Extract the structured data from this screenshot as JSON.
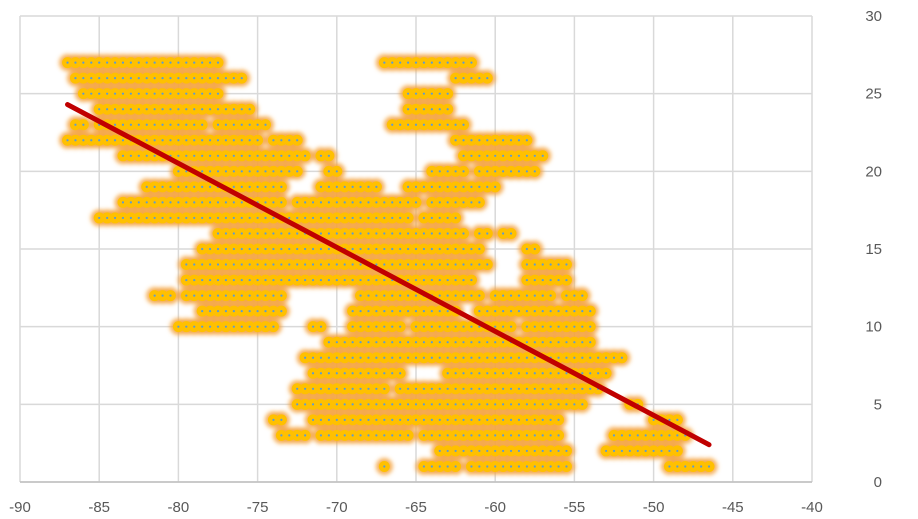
{
  "chart_data": {
    "type": "scatter",
    "title": "",
    "xlabel": "",
    "ylabel": "",
    "xlim": [
      -90,
      -40
    ],
    "ylim": [
      0,
      30
    ],
    "x_ticks": [
      -90,
      -85,
      -80,
      -75,
      -70,
      -65,
      -60,
      -55,
      -50,
      -45,
      -40
    ],
    "y_ticks": [
      0,
      5,
      10,
      15,
      20,
      25,
      30
    ],
    "x_tick_labels": [
      "-90",
      "-85",
      "-80",
      "-75",
      "-70",
      "-65",
      "-60",
      "-55",
      "-50",
      "-45",
      "-40"
    ],
    "y_tick_labels": [
      "0",
      "5",
      "10",
      "15",
      "20",
      "25",
      "30"
    ],
    "y_axis_side": "right",
    "grid": true,
    "legend": "none",
    "marker_color": "#FFC000",
    "marker_glow_color": "#F4A340",
    "marker_center_color": "#5B9BD5",
    "x_step": 0.5,
    "series": [
      {
        "points_by_row": [
          {
            "y": 27,
            "x_ranges": [
              [
                -87,
                -83.5
              ],
              [
                -83,
                -77.5
              ],
              [
                -67,
                -65
              ],
              [
                -64.5,
                -61.5
              ]
            ]
          },
          {
            "y": 26,
            "x_ranges": [
              [
                -86.5,
                -84.5
              ],
              [
                -84,
                -77.5
              ],
              [
                -77,
                -76
              ],
              [
                -62.5,
                -60.5
              ]
            ]
          },
          {
            "y": 25,
            "x_ranges": [
              [
                -86,
                -85.5
              ],
              [
                -85,
                -77.5
              ],
              [
                -65.5,
                -63
              ]
            ]
          },
          {
            "y": 24,
            "x_ranges": [
              [
                -85,
                -80
              ],
              [
                -79.5,
                -78
              ],
              [
                -77.5,
                -75.5
              ],
              [
                -65.5,
                -63
              ]
            ]
          },
          {
            "y": 23,
            "x_ranges": [
              [
                -86.5,
                -86
              ],
              [
                -85,
                -78.5
              ],
              [
                -77.5,
                -74.5
              ],
              [
                -66.5,
                -62
              ]
            ]
          },
          {
            "y": 22,
            "x_ranges": [
              [
                -87,
                -85.5
              ],
              [
                -85,
                -81
              ],
              [
                -80.5,
                -76.5
              ],
              [
                -76,
                -75
              ],
              [
                -74,
                -72.5
              ],
              [
                -62.5,
                -58
              ]
            ]
          },
          {
            "y": 21,
            "x_ranges": [
              [
                -83.5,
                -81.5
              ],
              [
                -81,
                -79
              ],
              [
                -78.5,
                -76
              ],
              [
                -75.5,
                -72
              ],
              [
                -71,
                -70.5
              ],
              [
                -62,
                -60
              ],
              [
                -59.5,
                -57
              ]
            ]
          },
          {
            "y": 20,
            "x_ranges": [
              [
                -80,
                -74
              ],
              [
                -73.5,
                -72.5
              ],
              [
                -70.5,
                -70
              ],
              [
                -64,
                -62
              ],
              [
                -61,
                -60
              ],
              [
                -59.5,
                -57.5
              ]
            ]
          },
          {
            "y": 19,
            "x_ranges": [
              [
                -82,
                -81
              ],
              [
                -80.5,
                -73.5
              ],
              [
                -71,
                -67.5
              ],
              [
                -65.5,
                -60
              ]
            ]
          },
          {
            "y": 18,
            "x_ranges": [
              [
                -83.5,
                -80
              ],
              [
                -79.5,
                -75.5
              ],
              [
                -75,
                -73.5
              ],
              [
                -72.5,
                -70.5
              ],
              [
                -70,
                -65
              ],
              [
                -64,
                -61
              ]
            ]
          },
          {
            "y": 17,
            "x_ranges": [
              [
                -85,
                -84
              ],
              [
                -83.5,
                -78
              ],
              [
                -77.5,
                -74
              ],
              [
                -73.5,
                -68.5
              ],
              [
                -68,
                -65.5
              ],
              [
                -64.5,
                -62.5
              ]
            ]
          },
          {
            "y": 16,
            "x_ranges": [
              [
                -77.5,
                -74
              ],
              [
                -73.5,
                -70
              ],
              [
                -69.5,
                -67.5
              ],
              [
                -67,
                -62
              ],
              [
                -61,
                -60.5
              ],
              [
                -59.5,
                -59
              ]
            ]
          },
          {
            "y": 15,
            "x_ranges": [
              [
                -78.5,
                -77.5
              ],
              [
                -77,
                -74
              ],
              [
                -73.5,
                -67
              ],
              [
                -66.5,
                -64
              ],
              [
                -63.5,
                -61
              ],
              [
                -58,
                -57.5
              ]
            ]
          },
          {
            "y": 14,
            "x_ranges": [
              [
                -79.5,
                -78
              ],
              [
                -77.5,
                -72
              ],
              [
                -71.5,
                -68
              ],
              [
                -67.5,
                -63.5
              ],
              [
                -63,
                -60.5
              ],
              [
                -58,
                -55.5
              ]
            ]
          },
          {
            "y": 13,
            "x_ranges": [
              [
                -79.5,
                -75.5
              ],
              [
                -75,
                -70.5
              ],
              [
                -70,
                -69
              ],
              [
                -68.5,
                -65
              ],
              [
                -64.5,
                -61.5
              ],
              [
                -58,
                -55.5
              ]
            ]
          },
          {
            "y": 12,
            "x_ranges": [
              [
                -81.5,
                -80.5
              ],
              [
                -79.5,
                -78
              ],
              [
                -77.5,
                -76.5
              ],
              [
                -76,
                -73.5
              ],
              [
                -68.5,
                -65
              ],
              [
                -64.5,
                -61
              ],
              [
                -60,
                -57.5
              ],
              [
                -57,
                -56.5
              ],
              [
                -55.5,
                -54.5
              ]
            ]
          },
          {
            "y": 11,
            "x_ranges": [
              [
                -78.5,
                -75
              ],
              [
                -74.5,
                -73.5
              ],
              [
                -69,
                -66
              ],
              [
                -65.5,
                -62.5
              ],
              [
                -61,
                -56
              ],
              [
                -55.5,
                -54
              ]
            ]
          },
          {
            "y": 10,
            "x_ranges": [
              [
                -80,
                -79.5
              ],
              [
                -79,
                -77
              ],
              [
                -76.5,
                -75.5
              ],
              [
                -75,
                -74
              ],
              [
                -71.5,
                -71
              ],
              [
                -69,
                -66
              ],
              [
                -65,
                -59
              ],
              [
                -58,
                -54
              ]
            ]
          },
          {
            "y": 9,
            "x_ranges": [
              [
                -70.5,
                -67.5
              ],
              [
                -67,
                -62
              ],
              [
                -61.5,
                -57
              ],
              [
                -56.5,
                -54
              ]
            ]
          },
          {
            "y": 8,
            "x_ranges": [
              [
                -72,
                -69
              ],
              [
                -68.5,
                -64
              ],
              [
                -63.5,
                -58
              ],
              [
                -57.5,
                -55
              ],
              [
                -54.5,
                -52
              ]
            ]
          },
          {
            "y": 7,
            "x_ranges": [
              [
                -71.5,
                -69
              ],
              [
                -68.5,
                -66
              ],
              [
                -63,
                -58.5
              ],
              [
                -58,
                -54
              ],
              [
                -53.5,
                -53
              ]
            ]
          },
          {
            "y": 6,
            "x_ranges": [
              [
                -72.5,
                -71.5
              ],
              [
                -71,
                -67
              ],
              [
                -66,
                -63.5
              ],
              [
                -63,
                -59.5
              ],
              [
                -59,
                -54.5
              ],
              [
                -54,
                -53.5
              ]
            ]
          },
          {
            "y": 5,
            "x_ranges": [
              [
                -72.5,
                -70.5
              ],
              [
                -70,
                -66.5
              ],
              [
                -66,
                -60
              ],
              [
                -59.5,
                -54.5
              ],
              [
                -51.5,
                -51
              ]
            ]
          },
          {
            "y": 4,
            "x_ranges": [
              [
                -74,
                -73.5
              ],
              [
                -71.5,
                -67
              ],
              [
                -66.5,
                -62
              ],
              [
                -61.5,
                -58.5
              ],
              [
                -58,
                -56
              ],
              [
                -50,
                -48.5
              ]
            ]
          },
          {
            "y": 3,
            "x_ranges": [
              [
                -73.5,
                -72
              ],
              [
                -71,
                -69
              ],
              [
                -68.5,
                -67
              ],
              [
                -66.5,
                -65.5
              ],
              [
                -64.5,
                -62.5
              ],
              [
                -62,
                -56
              ],
              [
                -52.5,
                -50
              ],
              [
                -49.5,
                -48
              ]
            ]
          },
          {
            "y": 2,
            "x_ranges": [
              [
                -63.5,
                -61
              ],
              [
                -60.5,
                -57
              ],
              [
                -56.5,
                -55.5
              ],
              [
                -53,
                -50.5
              ],
              [
                -50,
                -48.5
              ]
            ]
          },
          {
            "y": 1,
            "x_ranges": [
              [
                -67,
                -67
              ],
              [
                -64.5,
                -62.5
              ],
              [
                -61.5,
                -60
              ],
              [
                -59.5,
                -55.5
              ],
              [
                -49,
                -48.5
              ],
              [
                -48,
                -46.5
              ]
            ]
          }
        ]
      }
    ],
    "trendline": {
      "color": "#C00000",
      "points": [
        [
          -87,
          24.3
        ],
        [
          -46.5,
          2.4
        ]
      ]
    }
  }
}
